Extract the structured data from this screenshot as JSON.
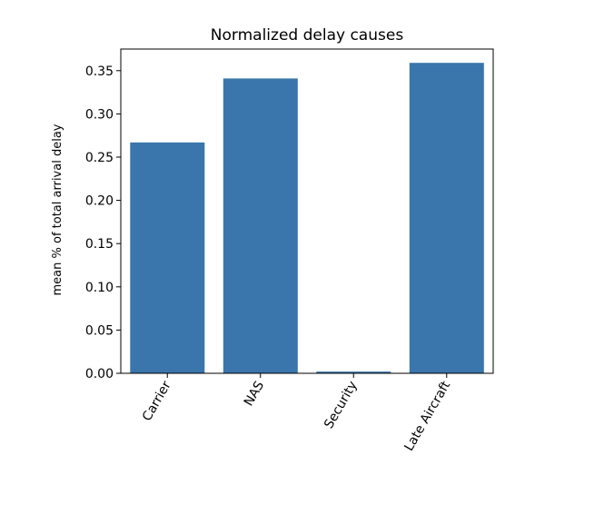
{
  "chart_data": {
    "type": "bar",
    "title": "Normalized delay causes",
    "xlabel": "",
    "ylabel": "mean % of total arrival delay",
    "categories": [
      "Carrier",
      "NAS",
      "Security",
      "Late Aircraft"
    ],
    "values": [
      0.267,
      0.341,
      0.002,
      0.359
    ],
    "ylim": [
      0,
      0.375
    ],
    "yticks": [
      "0.00",
      "0.05",
      "0.10",
      "0.15",
      "0.20",
      "0.25",
      "0.30",
      "0.35"
    ],
    "grid": false,
    "bar_color": "#3a75ab",
    "xtick_rotation_deg": -60
  }
}
